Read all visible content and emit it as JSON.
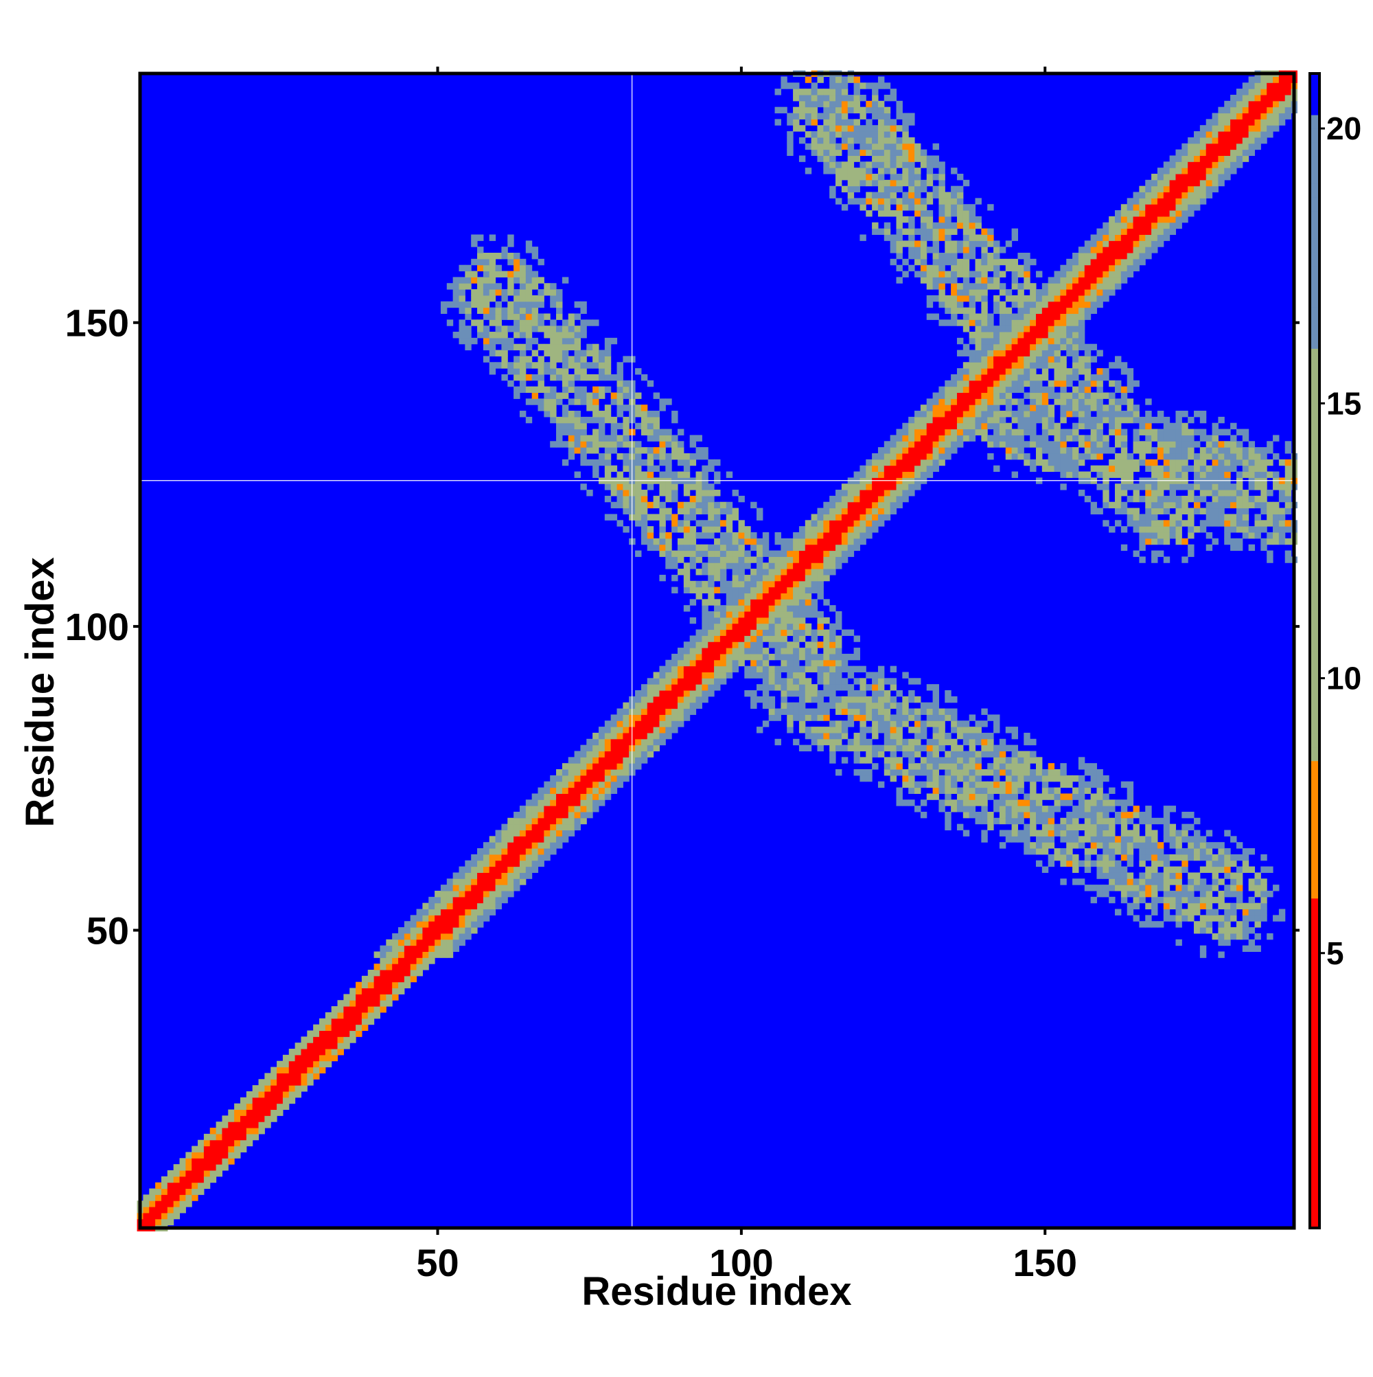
{
  "chart_data": {
    "type": "heatmap",
    "title": "",
    "xlabel": "Residue index",
    "ylabel": "Residue index",
    "xlim": [
      1,
      191
    ],
    "ylim": [
      1,
      191
    ],
    "x_ticks": [
      50,
      100,
      150
    ],
    "y_ticks": [
      50,
      100,
      150
    ],
    "colorbar": {
      "ticks": [
        5,
        10,
        15,
        20
      ],
      "range": [
        0,
        21
      ],
      "colors": [
        "#ff0000",
        "#ff8c00",
        "#9fb580",
        "#6b8fb8",
        "#0000ff"
      ]
    },
    "crosshair": {
      "x": 82,
      "y": 124
    },
    "structure": {
      "diagonal": "contact distance ≈ 0 along i = j",
      "off_diagonal_bands": [
        {
          "x_from": 60,
          "x_to": 110,
          "y_from": 155,
          "y_to": 95
        },
        {
          "x_from": 110,
          "x_to": 180,
          "y_from": 90,
          "y_to": 55
        },
        {
          "x_from": 115,
          "x_to": 170,
          "y_from": 185,
          "y_to": 120
        },
        {
          "x_from": 145,
          "x_to": 190,
          "y_from": 135,
          "y_to": 120
        }
      ]
    },
    "grid": false,
    "legend": "colorbar right"
  }
}
